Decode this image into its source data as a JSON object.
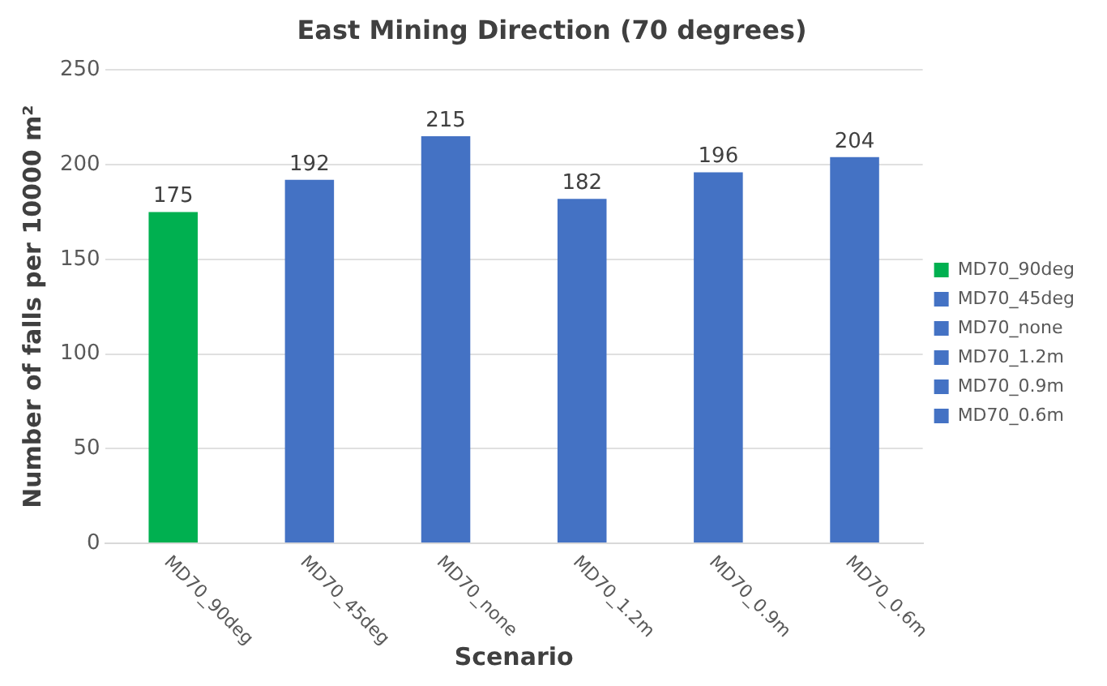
{
  "chart_data": {
    "type": "bar",
    "title": "East Mining Direction (70 degrees)",
    "xlabel": "Scenario",
    "ylabel": "Number of falls per 10000 m²",
    "categories": [
      "MD70_90deg",
      "MD70_45deg",
      "MD70_none",
      "MD70_1.2m",
      "MD70_0.9m",
      "MD70_0.6m"
    ],
    "series": [
      {
        "name": "MD70_90deg",
        "color": "#00b050",
        "values": [
          175,
          null,
          null,
          null,
          null,
          null
        ]
      },
      {
        "name": "MD70_45deg",
        "color": "#4472c4",
        "values": [
          null,
          192,
          null,
          null,
          null,
          null
        ]
      },
      {
        "name": "MD70_none",
        "color": "#4472c4",
        "values": [
          null,
          null,
          215,
          null,
          null,
          null
        ]
      },
      {
        "name": "MD70_1.2m",
        "color": "#4472c4",
        "values": [
          null,
          null,
          null,
          182,
          null,
          null
        ]
      },
      {
        "name": "MD70_0.9m",
        "color": "#4472c4",
        "values": [
          null,
          null,
          null,
          null,
          196,
          null
        ]
      },
      {
        "name": "MD70_0.6m",
        "color": "#4472c4",
        "values": [
          null,
          null,
          null,
          null,
          null,
          204
        ]
      }
    ],
    "ylim": [
      0,
      250
    ],
    "yticks": [
      0,
      50,
      100,
      150,
      200,
      250
    ],
    "grid": "y",
    "legend": "right",
    "data_labels": true
  }
}
